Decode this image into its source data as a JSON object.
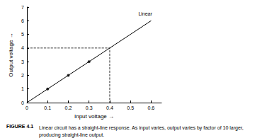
{
  "chart_data": {
    "type": "line",
    "title": "FIGURE 4.1",
    "subtitle": "Linear circuit has a straight-line response. As input varies, output varies by factor of 10 larger, producing straight-line output.",
    "xlabel": "Input voltage →",
    "ylabel": "Output voltage →",
    "series": [
      {
        "name": "Linear",
        "type": "line",
        "x": [
          0,
          0.6
        ],
        "values": [
          0,
          6
        ],
        "color": "#000000",
        "line_style": "solid"
      },
      {
        "type": "scatter",
        "x": [
          0.1,
          0.2,
          0.3
        ],
        "values": [
          1,
          2,
          3
        ],
        "color": "#000000",
        "marker": "circle"
      },
      {
        "type": "line",
        "x": [
          0,
          0.4,
          0.4
        ],
        "values": [
          4,
          4,
          0
        ],
        "color": "#000000",
        "line_style": "dashed"
      }
    ],
    "xlim": [
      0,
      0.65
    ],
    "xticks": [
      0,
      0.1,
      0.2,
      0.3,
      0.4,
      0.5,
      0.6
    ],
    "ylim": [
      0,
      7
    ],
    "yticks": [
      0,
      1,
      2,
      3,
      4,
      5,
      6,
      7
    ],
    "grid": false
  }
}
